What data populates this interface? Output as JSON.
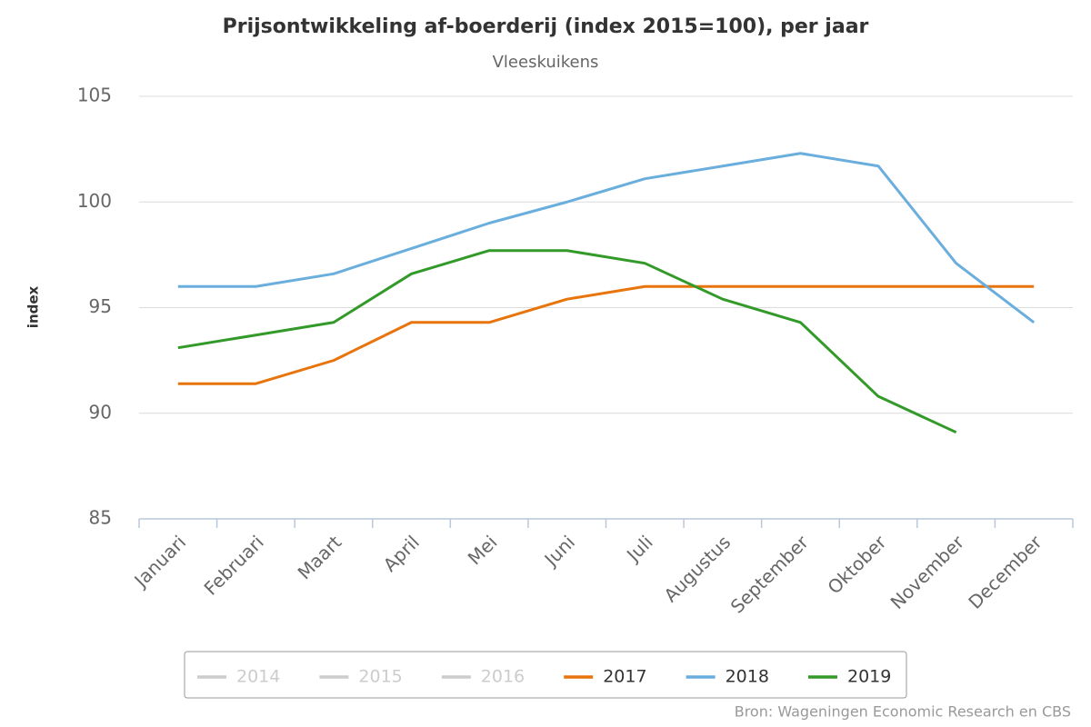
{
  "chart_data": {
    "type": "line",
    "title": "Prijsontwikkeling af-boerderij (index 2015=100), per jaar",
    "subtitle": "Vleeskuikens",
    "y_label": "index",
    "source": "Bron: Wageningen Economic Research en CBS",
    "categories": [
      "Januari",
      "Februari",
      "Maart",
      "April",
      "Mei",
      "Juni",
      "Juli",
      "Augustus",
      "September",
      "Oktober",
      "November",
      "December"
    ],
    "series": [
      {
        "name": "2014",
        "color": "#cccccc",
        "hidden": true,
        "values": [
          null,
          null,
          null,
          null,
          null,
          null,
          null,
          null,
          null,
          null,
          null,
          null
        ]
      },
      {
        "name": "2015",
        "color": "#cccccc",
        "hidden": true,
        "values": [
          null,
          null,
          null,
          null,
          null,
          null,
          null,
          null,
          null,
          null,
          null,
          null
        ]
      },
      {
        "name": "2016",
        "color": "#cccccc",
        "hidden": true,
        "values": [
          null,
          null,
          null,
          null,
          null,
          null,
          null,
          null,
          null,
          null,
          null,
          null
        ]
      },
      {
        "name": "2017",
        "color": "#e8740c",
        "values": [
          91.4,
          91.4,
          92.5,
          94.3,
          94.3,
          95.4,
          96.0,
          96.0,
          96.0,
          96.0,
          96.0,
          96.0
        ]
      },
      {
        "name": "2018",
        "color": "#6aaedd",
        "values": [
          96.0,
          96.0,
          96.6,
          97.8,
          99.0,
          100.0,
          101.1,
          101.7,
          102.3,
          101.7,
          97.1,
          94.3
        ]
      },
      {
        "name": "2019",
        "color": "#339a2a",
        "values": [
          93.1,
          93.7,
          94.3,
          96.6,
          97.7,
          97.7,
          97.1,
          95.4,
          94.3,
          90.8,
          89.1,
          null
        ]
      }
    ],
    "ylim": [
      85,
      105
    ],
    "yticks": [
      85,
      90,
      95,
      100,
      105
    ],
    "grid": true
  }
}
